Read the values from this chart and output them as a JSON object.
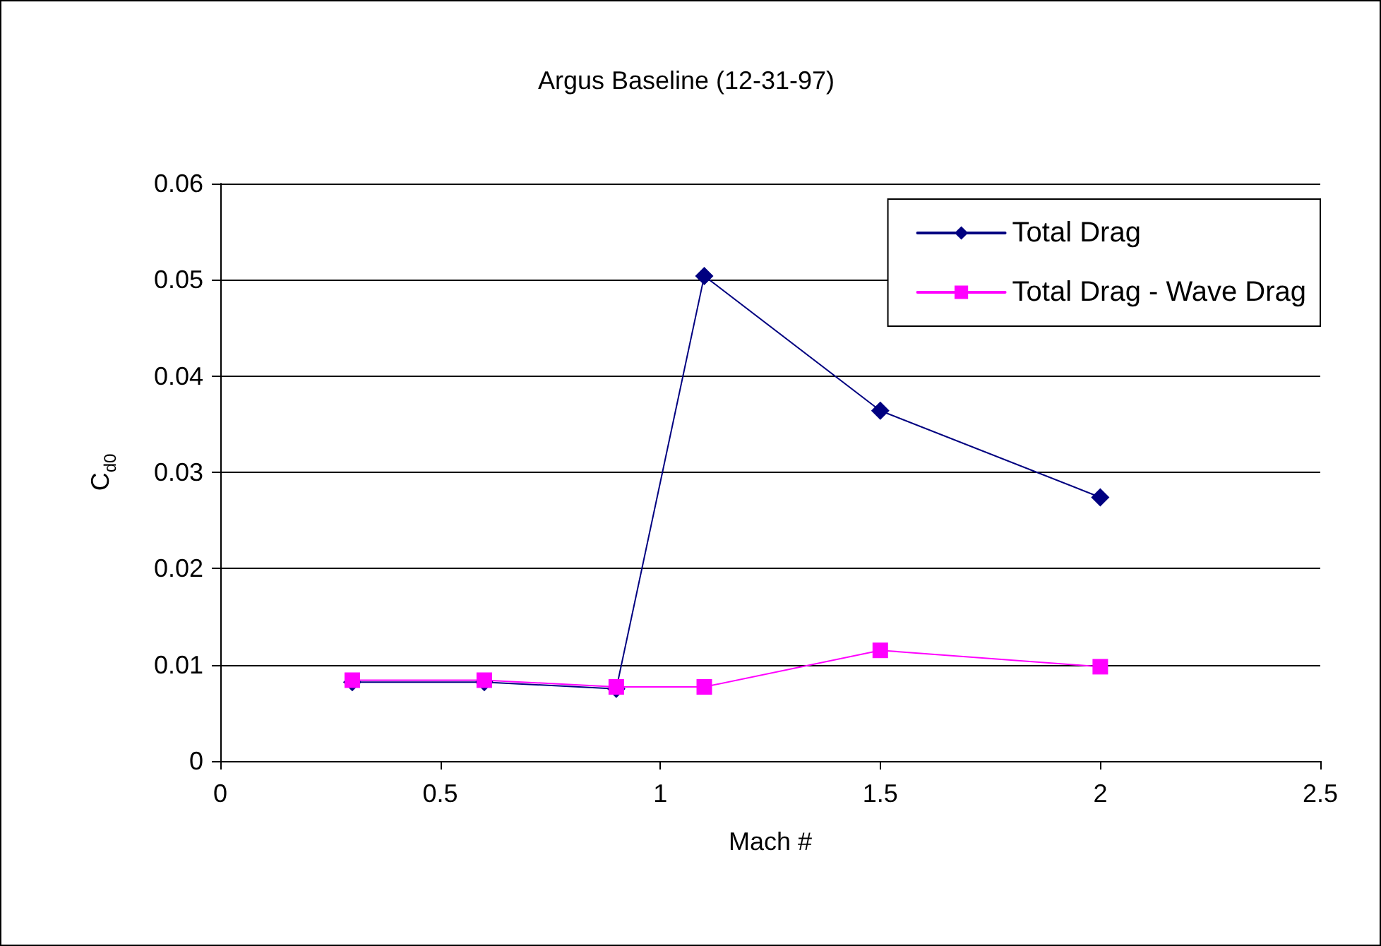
{
  "chart_data": {
    "type": "line",
    "title": "Argus Baseline (12-31-97)",
    "xlabel": "Mach #",
    "ylabel": "C$_{d0}$",
    "x": [
      0.3,
      0.6,
      0.9,
      1.1,
      1.5,
      2
    ],
    "series": [
      {
        "name": "Total Drag",
        "color": "#000080",
        "marker": "diamond",
        "values": [
          0.0082,
          0.0082,
          0.0075,
          0.0504,
          0.0364,
          0.0274
        ]
      },
      {
        "name": "Total Drag - Wave Drag",
        "color": "#ff00ff",
        "marker": "square",
        "values": [
          0.0084,
          0.0084,
          0.0077,
          0.0077,
          0.0115,
          0.0098
        ]
      }
    ],
    "xlim": [
      0,
      2.5
    ],
    "xticks": [
      0,
      0.5,
      1,
      1.5,
      2,
      2.5
    ],
    "ylim": [
      0,
      0.06
    ],
    "yticks": [
      0,
      0.01,
      0.02,
      0.03,
      0.04,
      0.05,
      0.06
    ],
    "grid": "y",
    "legend": "top right",
    "line_style": "solid"
  }
}
